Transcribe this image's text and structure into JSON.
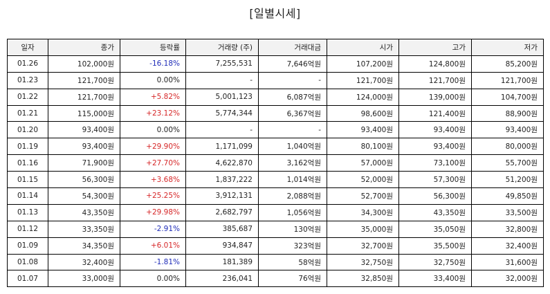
{
  "title": "[일별시세]",
  "columns": [
    "일자",
    "종가",
    "등락률",
    "거래량 (주)",
    "거래대금",
    "시가",
    "고가",
    "저가"
  ],
  "colors": {
    "up": "#d62728",
    "down": "#1f2cb8",
    "flat": "#222222"
  },
  "rows": [
    {
      "date": "01.26",
      "close": "102,000원",
      "change": "-16.18%",
      "dir": "down",
      "volume": "7,255,531",
      "amount": "7,646억원",
      "open": "107,200원",
      "high": "124,800원",
      "low": "85,200원"
    },
    {
      "date": "01.23",
      "close": "121,700원",
      "change": "0.00%",
      "dir": "flat",
      "volume": "-",
      "amount": "-",
      "open": "121,700원",
      "high": "121,700원",
      "low": "121,700원"
    },
    {
      "date": "01.22",
      "close": "121,700원",
      "change": "+5.82%",
      "dir": "up",
      "volume": "5,001,123",
      "amount": "6,087억원",
      "open": "124,000원",
      "high": "139,000원",
      "low": "104,700원"
    },
    {
      "date": "01.21",
      "close": "115,000원",
      "change": "+23.12%",
      "dir": "up",
      "volume": "5,774,344",
      "amount": "6,367억원",
      "open": "98,600원",
      "high": "121,400원",
      "low": "88,900원"
    },
    {
      "date": "01.20",
      "close": "93,400원",
      "change": "0.00%",
      "dir": "flat",
      "volume": "-",
      "amount": "-",
      "open": "93,400원",
      "high": "93,400원",
      "low": "93,400원"
    },
    {
      "date": "01.19",
      "close": "93,400원",
      "change": "+29.90%",
      "dir": "up",
      "volume": "1,171,099",
      "amount": "1,040억원",
      "open": "80,100원",
      "high": "93,400원",
      "low": "80,000원"
    },
    {
      "date": "01.16",
      "close": "71,900원",
      "change": "+27.70%",
      "dir": "up",
      "volume": "4,622,870",
      "amount": "3,162억원",
      "open": "57,000원",
      "high": "73,100원",
      "low": "55,700원"
    },
    {
      "date": "01.15",
      "close": "56,300원",
      "change": "+3.68%",
      "dir": "up",
      "volume": "1,837,222",
      "amount": "1,014억원",
      "open": "52,000원",
      "high": "57,300원",
      "low": "51,200원"
    },
    {
      "date": "01.14",
      "close": "54,300원",
      "change": "+25.25%",
      "dir": "up",
      "volume": "3,912,131",
      "amount": "2,088억원",
      "open": "52,700원",
      "high": "56,300원",
      "low": "49,850원"
    },
    {
      "date": "01.13",
      "close": "43,350원",
      "change": "+29.98%",
      "dir": "up",
      "volume": "2,682,797",
      "amount": "1,056억원",
      "open": "34,300원",
      "high": "43,350원",
      "low": "33,500원"
    },
    {
      "date": "01.12",
      "close": "33,350원",
      "change": "-2.91%",
      "dir": "down",
      "volume": "385,687",
      "amount": "130억원",
      "open": "35,000원",
      "high": "35,050원",
      "low": "32,800원"
    },
    {
      "date": "01.09",
      "close": "34,350원",
      "change": "+6.01%",
      "dir": "up",
      "volume": "934,847",
      "amount": "323억원",
      "open": "32,700원",
      "high": "35,500원",
      "low": "32,400원"
    },
    {
      "date": "01.08",
      "close": "32,400원",
      "change": "-1.81%",
      "dir": "down",
      "volume": "181,389",
      "amount": "58억원",
      "open": "32,750원",
      "high": "32,750원",
      "low": "31,600원"
    },
    {
      "date": "01.07",
      "close": "33,000원",
      "change": "0.00%",
      "dir": "flat",
      "volume": "236,041",
      "amount": "76억원",
      "open": "32,850원",
      "high": "33,400원",
      "low": "32,000원"
    }
  ]
}
